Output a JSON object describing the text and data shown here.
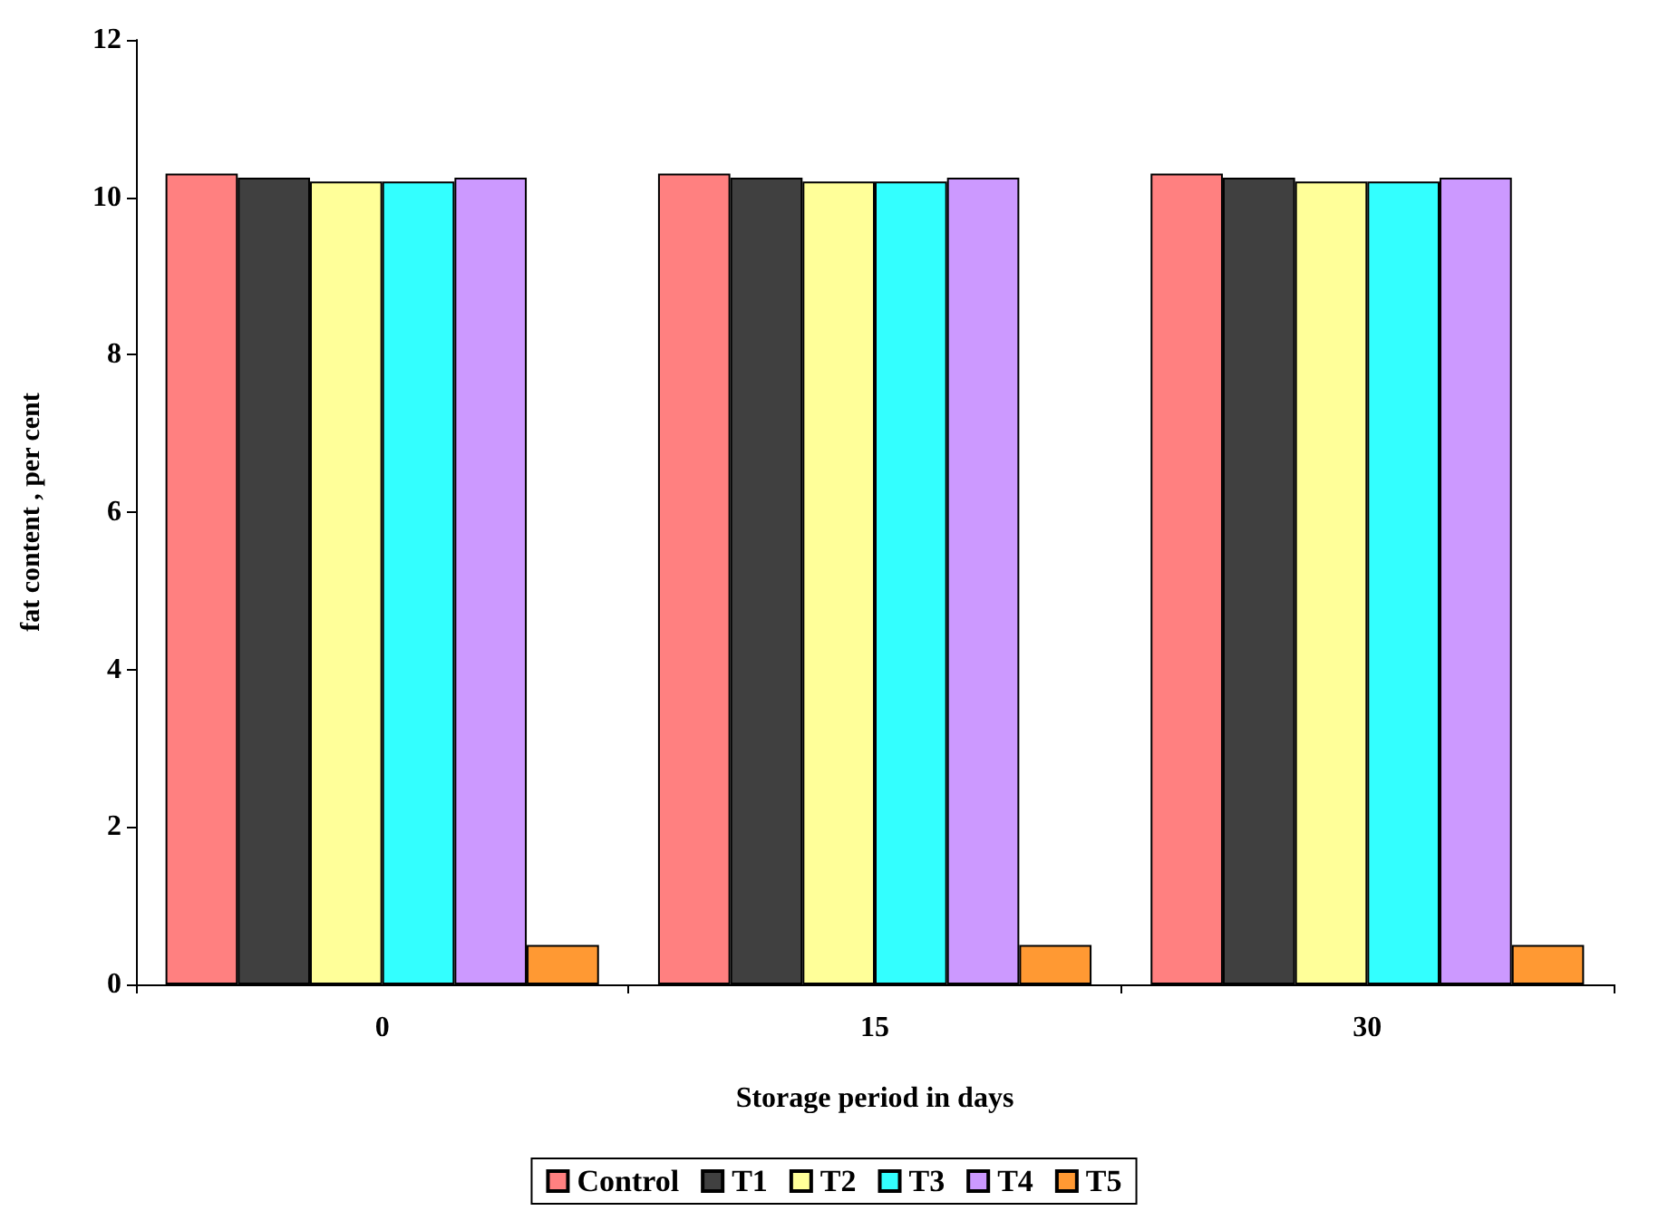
{
  "chart_data": {
    "type": "bar",
    "xlabel": "Storage period in days",
    "ylabel": "fat content , per cent",
    "categories": [
      "0",
      "15",
      "30"
    ],
    "series": [
      {
        "name": "Control",
        "color": "#ff8080",
        "values": [
          10.3,
          10.3,
          10.3
        ]
      },
      {
        "name": "T1",
        "color": "#404040",
        "values": [
          10.25,
          10.25,
          10.25
        ]
      },
      {
        "name": "T2",
        "color": "#ffff99",
        "values": [
          10.2,
          10.2,
          10.2
        ]
      },
      {
        "name": "T3",
        "color": "#33ffff",
        "values": [
          10.2,
          10.2,
          10.2
        ]
      },
      {
        "name": "T4",
        "color": "#cc99ff",
        "values": [
          10.25,
          10.25,
          10.25
        ]
      },
      {
        "name": "T5",
        "color": "#ff9933",
        "values": [
          0.5,
          0.5,
          0.5
        ]
      }
    ],
    "ylim": [
      0,
      12
    ],
    "yticks": [
      0,
      2,
      4,
      6,
      8,
      10,
      12
    ],
    "grid": false,
    "legend": "bottom"
  }
}
